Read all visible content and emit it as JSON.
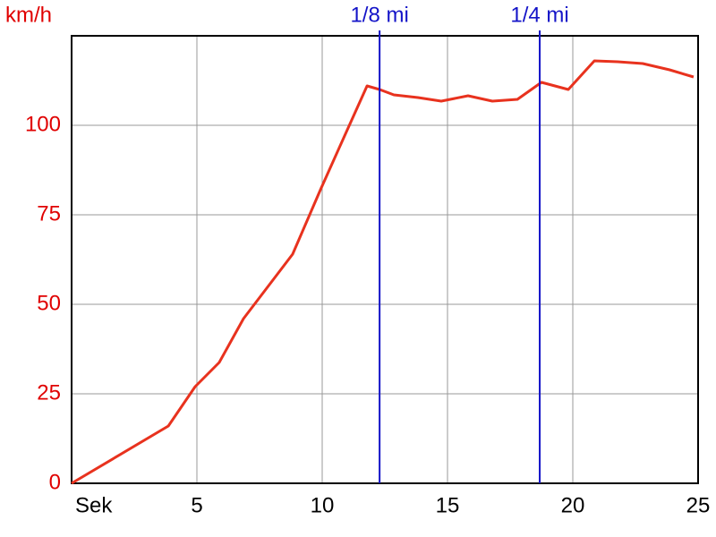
{
  "chart_data": {
    "type": "line",
    "y_label": "km/h",
    "x": [
      0,
      3.86,
      4.93,
      5.89,
      6.86,
      8.82,
      9.93,
      10.89,
      11.79,
      12.29,
      12.86,
      13.82,
      14.75,
      15.82,
      16.79,
      17.79,
      18.75,
      19.82,
      20.86,
      21.79,
      22.79,
      23.86,
      24.82
    ],
    "series": [
      {
        "color": "#e8321e",
        "values": [
          0,
          16,
          27,
          33.75,
          46,
          64,
          82,
          97,
          111,
          110,
          108.5,
          107.75,
          106.75,
          108.25,
          106.75,
          107.25,
          112,
          110,
          118,
          117.75,
          117.25,
          115.5,
          113.5
        ]
      }
    ],
    "xlim": [
      0,
      25
    ],
    "ylim": [
      0,
      125
    ],
    "xticks": [
      {
        "value": 0,
        "label": "Sek"
      },
      5,
      10,
      15,
      20,
      25
    ],
    "yticks": [
      0,
      25,
      50,
      75,
      100
    ],
    "grid": true,
    "markers": [
      {
        "x": 12.29,
        "label": "1/8 mi",
        "color": "#1414c8"
      },
      {
        "x": 18.68,
        "label": "1/4 mi",
        "color": "#1414c8"
      }
    ],
    "tick_color": "#e00000"
  }
}
